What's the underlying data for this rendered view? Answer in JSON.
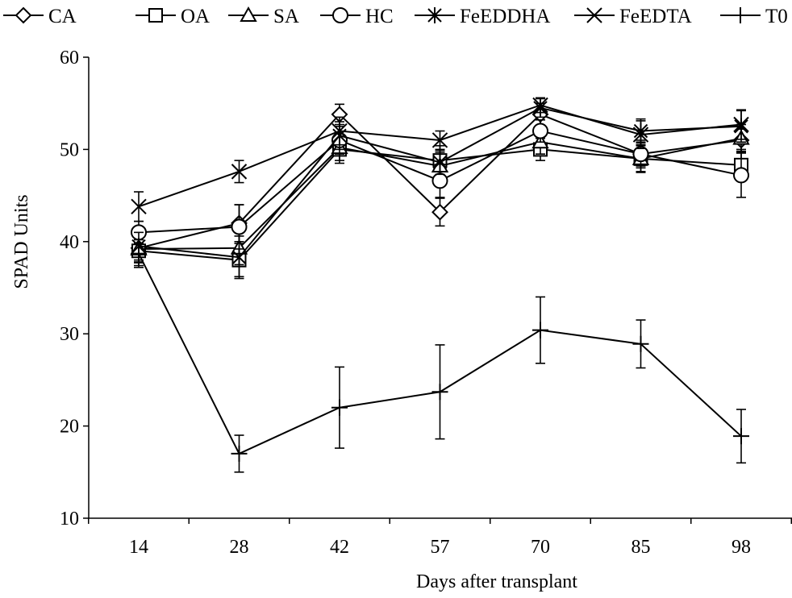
{
  "chart_data": {
    "type": "line",
    "xlabel": "Days after transplant",
    "ylabel": "SPAD Units",
    "ylim": [
      10,
      60
    ],
    "yticks": [
      10,
      20,
      30,
      40,
      50,
      60
    ],
    "categories": [
      "14",
      "28",
      "42",
      "57",
      "70",
      "85",
      "98"
    ],
    "grid": false,
    "legend_position": "top",
    "series": [
      {
        "name": "CA",
        "marker": "diamond",
        "values": [
          39.3,
          42.0,
          53.8,
          43.2,
          53.8,
          49.5,
          51.0
        ],
        "error": [
          1.5,
          2.0,
          1.1,
          1.5,
          1.2,
          1.3,
          1.2
        ]
      },
      {
        "name": "OA",
        "marker": "square",
        "values": [
          39.0,
          38.0,
          50.0,
          48.8,
          50.0,
          49.0,
          48.3
        ],
        "error": [
          1.6,
          1.8,
          1.5,
          1.6,
          1.2,
          1.5,
          1.7
        ]
      },
      {
        "name": "SA",
        "marker": "triangle",
        "values": [
          39.2,
          39.3,
          50.2,
          48.2,
          50.8,
          49.0,
          51.2
        ],
        "error": [
          1.5,
          1.8,
          1.4,
          1.5,
          1.3,
          1.4,
          1.5
        ]
      },
      {
        "name": "HC",
        "marker": "circle",
        "values": [
          41.0,
          41.6,
          51.0,
          46.6,
          52.0,
          49.5,
          47.2
        ],
        "error": [
          1.2,
          2.4,
          1.5,
          1.8,
          1.2,
          1.5,
          2.4
        ]
      },
      {
        "name": "FeEDDHA",
        "marker": "asterisk",
        "values": [
          39.5,
          38.3,
          51.5,
          48.6,
          54.5,
          52.0,
          52.5
        ],
        "error": [
          1.5,
          2.3,
          1.5,
          1.3,
          1.0,
          1.3,
          1.7
        ]
      },
      {
        "name": "FeEDTA",
        "marker": "cross",
        "values": [
          43.8,
          47.6,
          52.0,
          51.0,
          54.8,
          51.6,
          52.7
        ],
        "error": [
          1.6,
          1.2,
          1.5,
          1.0,
          0.8,
          1.5,
          1.6
        ]
      },
      {
        "name": "T0",
        "marker": "plus",
        "values": [
          38.7,
          17.0,
          22.0,
          23.7,
          30.4,
          28.9,
          18.9
        ],
        "error": [
          1.5,
          2.0,
          4.4,
          5.1,
          3.6,
          2.6,
          2.9
        ]
      }
    ]
  }
}
